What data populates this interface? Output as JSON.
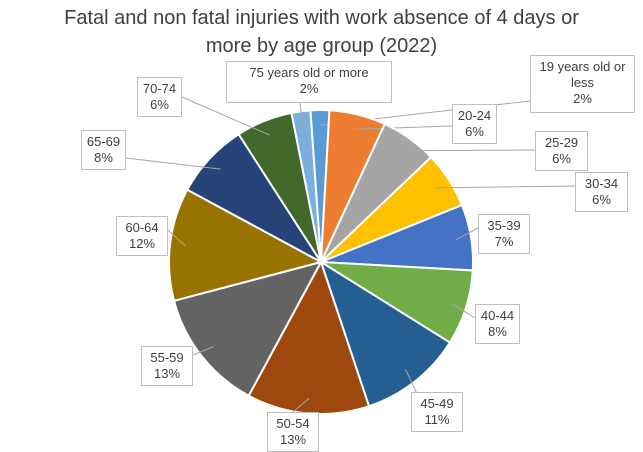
{
  "chart_data": {
    "type": "pie",
    "title": "Fatal and non fatal injuries with work absence of 4 days or more by age group (2022)",
    "slices": [
      {
        "label": "19 years old or less",
        "value": 2,
        "value_text": "2%",
        "color": "#5B9BD5"
      },
      {
        "label": "20-24",
        "value": 6,
        "value_text": "6%",
        "color": "#ED7D31"
      },
      {
        "label": "25-29",
        "value": 6,
        "value_text": "6%",
        "color": "#A5A5A5"
      },
      {
        "label": "30-34",
        "value": 6,
        "value_text": "6%",
        "color": "#FFC000"
      },
      {
        "label": "35-39",
        "value": 7,
        "value_text": "7%",
        "color": "#4472C4"
      },
      {
        "label": "40-44",
        "value": 8,
        "value_text": "8%",
        "color": "#70AD47"
      },
      {
        "label": "45-49",
        "value": 11,
        "value_text": "11%",
        "color": "#255E91"
      },
      {
        "label": "50-54",
        "value": 13,
        "value_text": "13%",
        "color": "#9E480E"
      },
      {
        "label": "55-59",
        "value": 13,
        "value_text": "13%",
        "color": "#636363"
      },
      {
        "label": "60-64",
        "value": 12,
        "value_text": "12%",
        "color": "#997300"
      },
      {
        "label": "65-69",
        "value": 8,
        "value_text": "8%",
        "color": "#264478"
      },
      {
        "label": "70-74",
        "value": 6,
        "value_text": "6%",
        "color": "#43682B"
      },
      {
        "label": "75 years old or more",
        "value": 2,
        "value_text": "2%",
        "color": "#7CAFDD"
      }
    ]
  }
}
